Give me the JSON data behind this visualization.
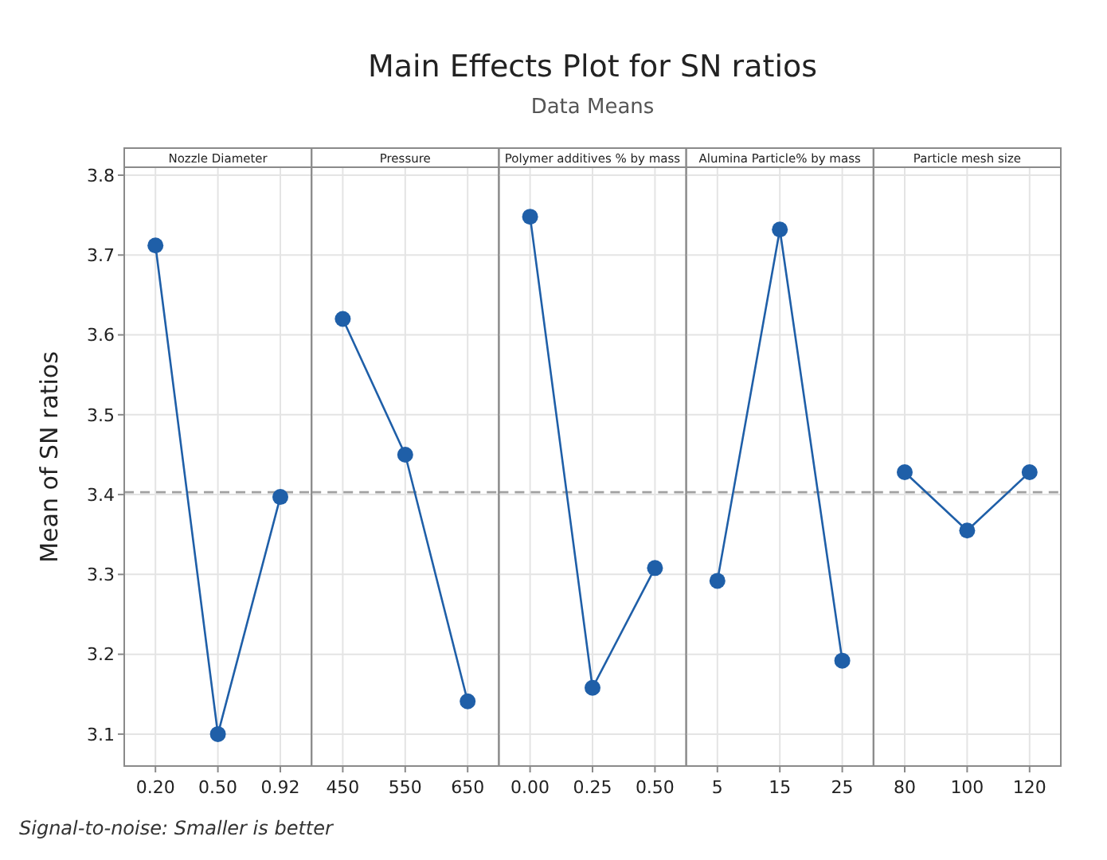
{
  "chart_data": [
    {
      "type": "line",
      "ylabel": "Mean of SN ratios",
      "xlabel": "Nozzle Diameter",
      "annotations": [
        "Signal-to-noise: Smaller is better"
      ],
      "categories": [
        "0.20",
        "0.50",
        "0.92"
      ],
      "series": [
        {
          "color": "#1f5fa8",
          "values": [
            3.712,
            3.1,
            3.397
          ]
        }
      ],
      "ylim": [
        3.06,
        3.81
      ],
      "yticks": [
        3.1,
        3.2,
        3.3,
        3.4,
        3.5,
        3.6,
        3.7,
        3.8
      ],
      "grid": true,
      "marker": "circle",
      "line_style": "solid",
      "ref_lines": [
        {
          "axis": "y",
          "value": 3.403,
          "color": "#a0a0a0",
          "line_style": "dashed"
        }
      ]
    },
    {
      "type": "line",
      "xlabel": "Pressure",
      "categories": [
        "450",
        "550",
        "650"
      ],
      "series": [
        {
          "color": "#1f5fa8",
          "values": [
            3.62,
            3.45,
            3.141
          ]
        }
      ],
      "ylim": [
        3.06,
        3.81
      ],
      "yticks": [
        3.1,
        3.2,
        3.3,
        3.4,
        3.5,
        3.6,
        3.7,
        3.8
      ],
      "tick_labels": "x",
      "grid": true,
      "marker": "circle",
      "line_style": "solid",
      "ref_lines": [
        {
          "axis": "y",
          "value": 3.403,
          "color": "#a0a0a0",
          "line_style": "dashed"
        }
      ]
    },
    {
      "type": "line",
      "title": "Main Effects Plot for SN ratios",
      "subtitle": "Data Means",
      "xlabel": "Polymer additives % by mass",
      "categories": [
        "0.00",
        "0.25",
        "0.50"
      ],
      "series": [
        {
          "color": "#1f5fa8",
          "values": [
            3.748,
            3.158,
            3.308
          ]
        }
      ],
      "ylim": [
        3.06,
        3.81
      ],
      "yticks": [
        3.1,
        3.2,
        3.3,
        3.4,
        3.5,
        3.6,
        3.7,
        3.8
      ],
      "tick_labels": "x",
      "grid": true,
      "marker": "circle",
      "line_style": "solid",
      "ref_lines": [
        {
          "axis": "y",
          "value": 3.403,
          "color": "#a0a0a0",
          "line_style": "dashed"
        }
      ]
    },
    {
      "type": "line",
      "xlabel": "Alumina Particle% by mass",
      "categories": [
        "5",
        "15",
        "25"
      ],
      "series": [
        {
          "color": "#1f5fa8",
          "values": [
            3.292,
            3.732,
            3.192
          ]
        }
      ],
      "ylim": [
        3.06,
        3.81
      ],
      "yticks": [
        3.1,
        3.2,
        3.3,
        3.4,
        3.5,
        3.6,
        3.7,
        3.8
      ],
      "tick_labels": "x",
      "grid": true,
      "marker": "circle",
      "line_style": "solid",
      "ref_lines": [
        {
          "axis": "y",
          "value": 3.403,
          "color": "#a0a0a0",
          "line_style": "dashed"
        }
      ]
    },
    {
      "type": "line",
      "xlabel": "Particle mesh size",
      "categories": [
        "80",
        "100",
        "120"
      ],
      "series": [
        {
          "color": "#1f5fa8",
          "values": [
            3.428,
            3.355,
            3.428
          ]
        }
      ],
      "ylim": [
        3.06,
        3.81
      ],
      "yticks": [
        3.1,
        3.2,
        3.3,
        3.4,
        3.5,
        3.6,
        3.7,
        3.8
      ],
      "tick_labels": "x",
      "grid": true,
      "marker": "circle",
      "line_style": "solid",
      "ref_lines": [
        {
          "axis": "y",
          "value": 3.403,
          "color": "#a0a0a0",
          "line_style": "dashed"
        }
      ]
    }
  ]
}
